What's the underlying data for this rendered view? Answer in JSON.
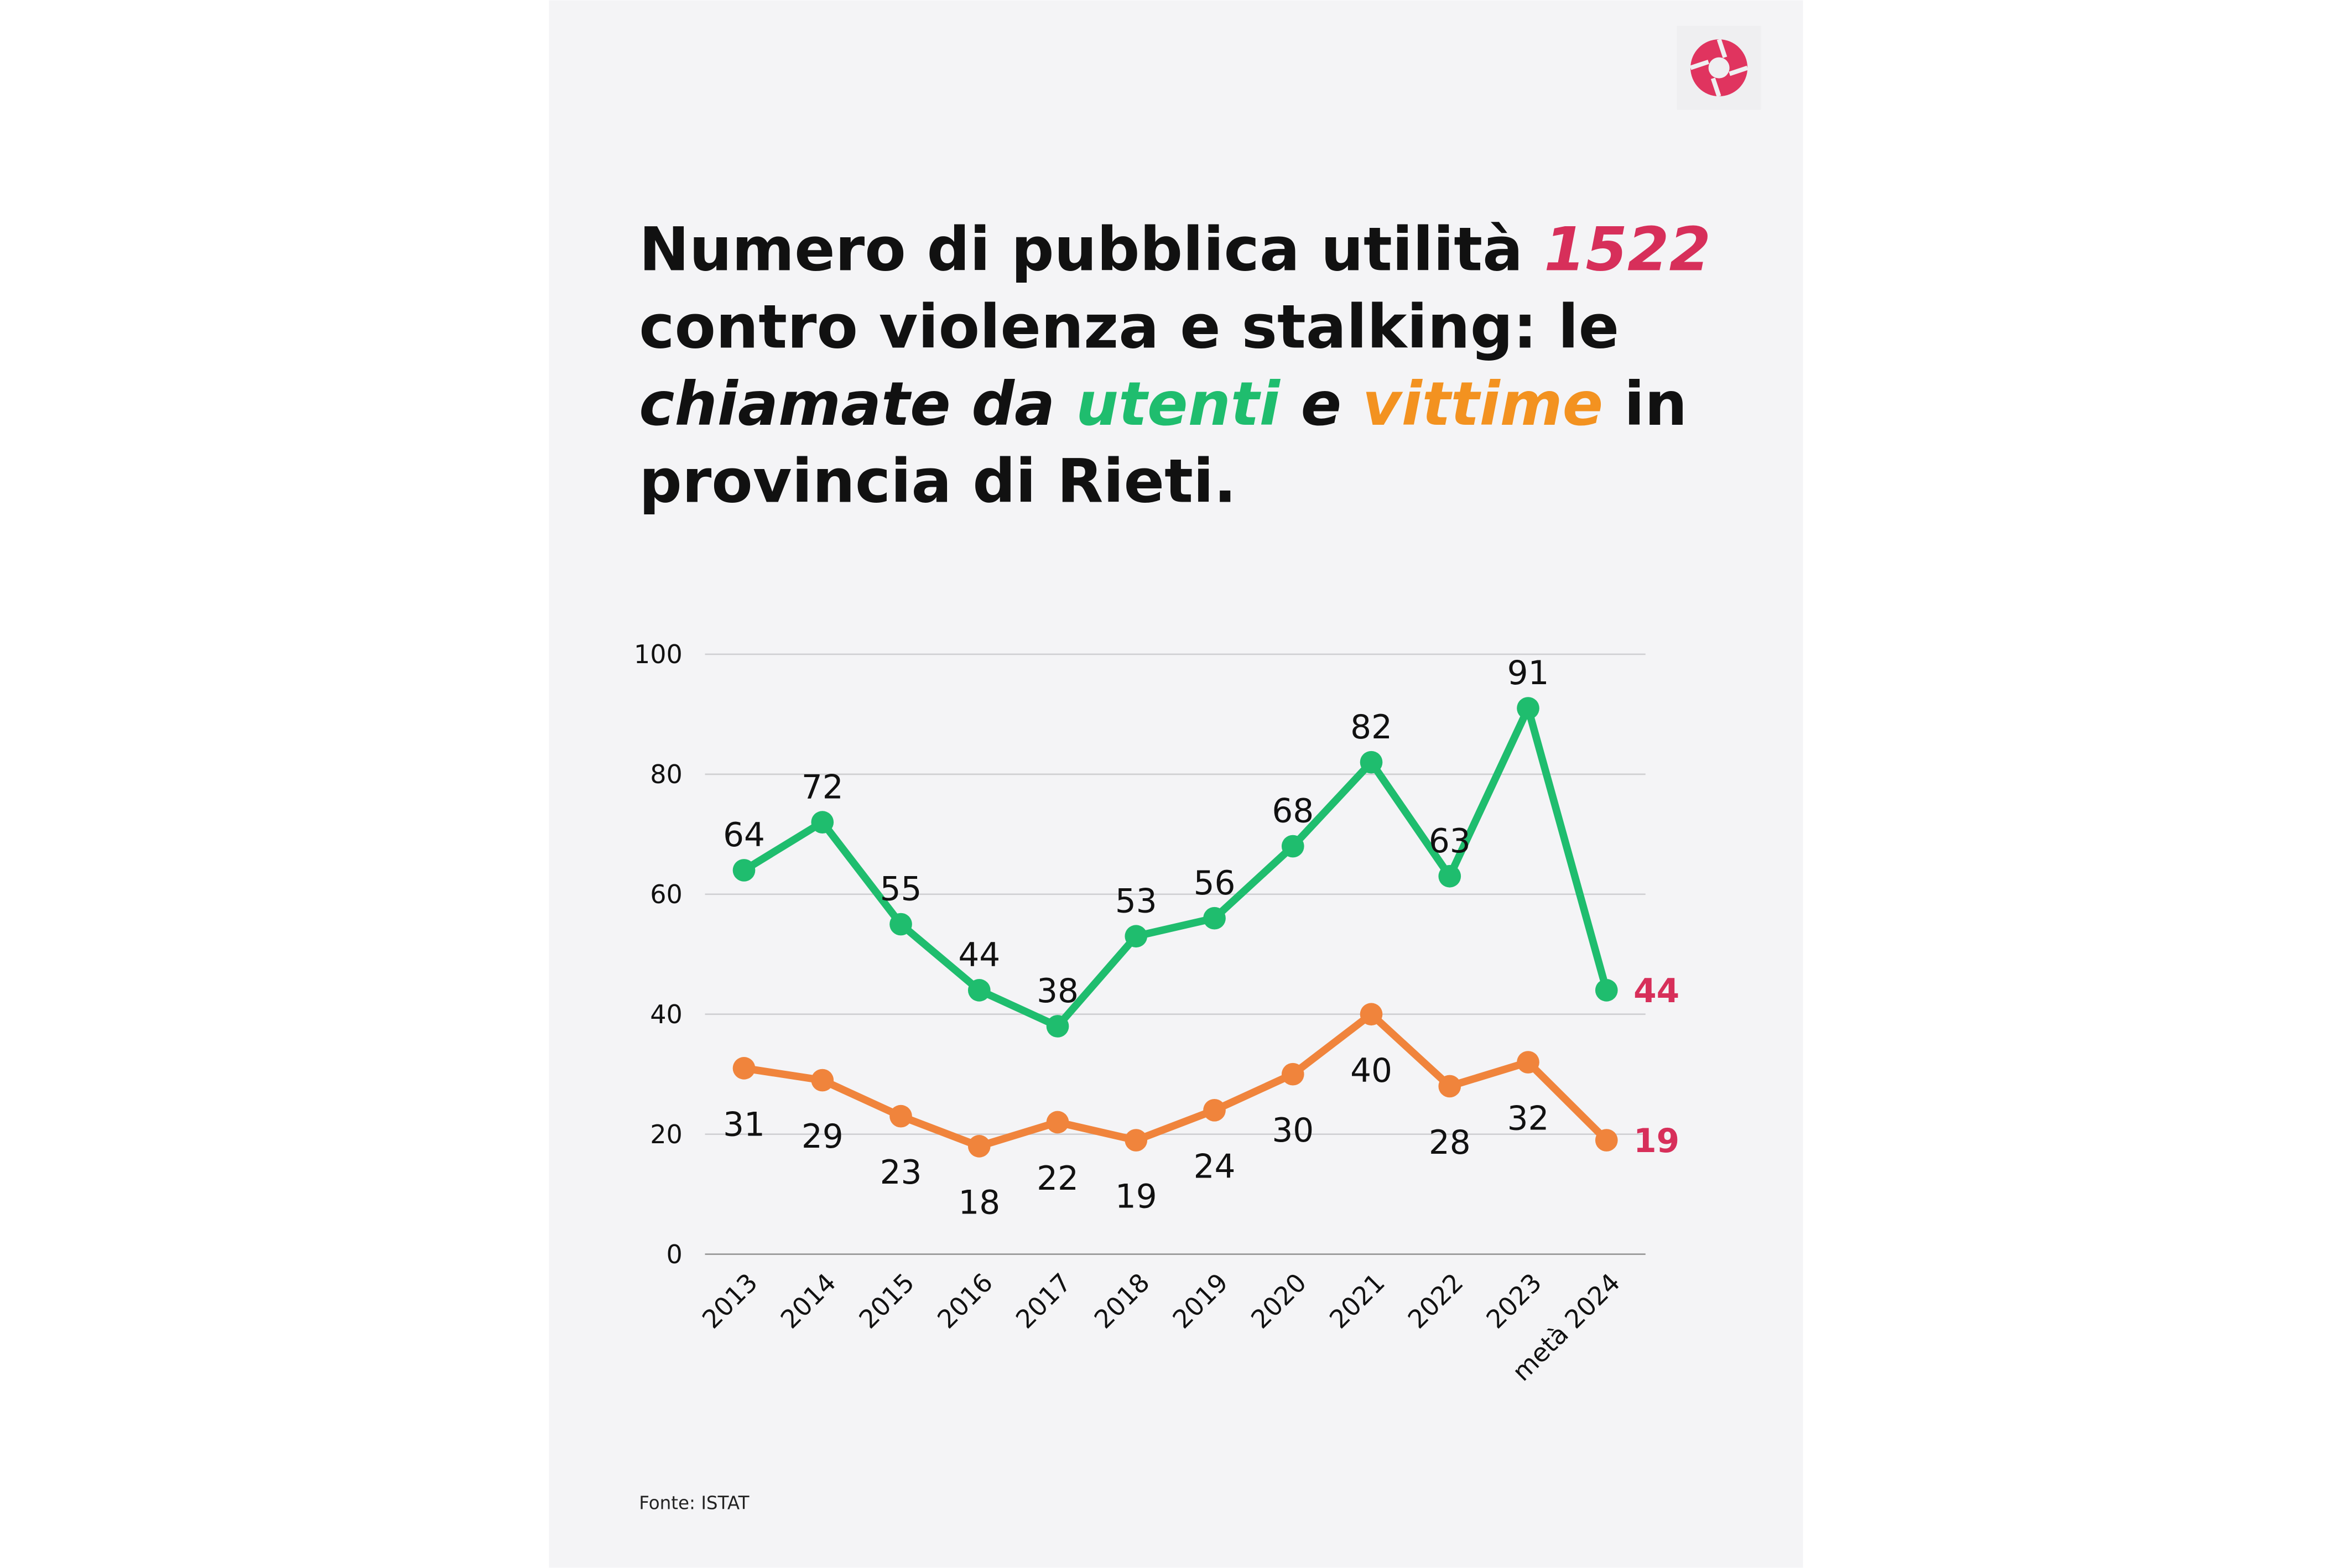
{
  "chart_data": {
    "type": "line",
    "title_lines": [
      [
        {
          "text": "Numero di pubblica utilità ",
          "color": "#111111",
          "italic": false
        },
        {
          "text": "1522",
          "color": "#d72f5a",
          "italic": true
        }
      ],
      [
        {
          "text": "contro violenza e stalking: le",
          "color": "#111111",
          "italic": false
        }
      ],
      [
        {
          "text": "chiamate da ",
          "color": "#111111",
          "italic": true
        },
        {
          "text": "utenti",
          "color": "#1fbd6e",
          "italic": true
        },
        {
          "text": " e ",
          "color": "#111111",
          "italic": true
        },
        {
          "text": "vittime",
          "color": "#f39220",
          "italic": true
        },
        {
          "text": " in",
          "color": "#111111",
          "italic": false
        }
      ],
      [
        {
          "text": "provincia di Rieti.",
          "color": "#111111",
          "italic": false
        }
      ]
    ],
    "categories": [
      "2013",
      "2014",
      "2015",
      "2016",
      "2017",
      "2018",
      "2019",
      "2020",
      "2021",
      "2022",
      "2023",
      "metà 2024"
    ],
    "series": [
      {
        "color": "#1fbd6e",
        "label_side": "above",
        "last_label_color": "#d72f5a",
        "values": [
          64,
          72,
          55,
          44,
          38,
          53,
          56,
          68,
          82,
          63,
          91,
          44
        ]
      },
      {
        "color": "#f0843c",
        "label_side": "below",
        "last_label_color": "#d72f5a",
        "values": [
          31,
          29,
          23,
          18,
          22,
          19,
          24,
          30,
          40,
          28,
          32,
          19
        ]
      }
    ],
    "ylim": [
      0,
      100
    ],
    "yticks": [
      0,
      20,
      40,
      60,
      80,
      100
    ],
    "grid": true,
    "source": "Fonte: ISTAT"
  }
}
